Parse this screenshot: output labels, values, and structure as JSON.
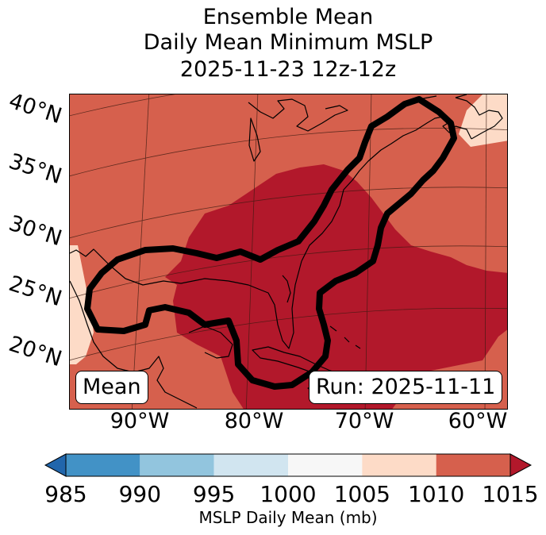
{
  "title": {
    "line1": "Ensemble Mean",
    "line2": "Daily Mean Minimum MSLP",
    "line3": "2025-11-23 12z-12z"
  },
  "axes": {
    "lat_labels": [
      "40°N",
      "35°N",
      "30°N",
      "25°N",
      "20°N"
    ],
    "lon_labels": [
      "90°W",
      "80°W",
      "70°W",
      "60°W"
    ]
  },
  "annotations": {
    "left": "Mean",
    "right": "Run: 2025-11-11"
  },
  "colorbar": {
    "label": "MSLP Daily Mean (mb)",
    "ticks": [
      "985",
      "990",
      "995",
      "1000",
      "1005",
      "1010",
      "1015"
    ],
    "colors": [
      "#4292c6",
      "#92c5de",
      "#d1e5f0",
      "#f7f7f7",
      "#fddbc7",
      "#d6604d"
    ],
    "under_color": "#2166ac",
    "over_color": "#b2182b"
  },
  "map": {
    "fill_colors": {
      "background": "#d6604d",
      "low": "#b2182b",
      "high": "#fddbc7"
    },
    "contour_color": "#000000"
  }
}
